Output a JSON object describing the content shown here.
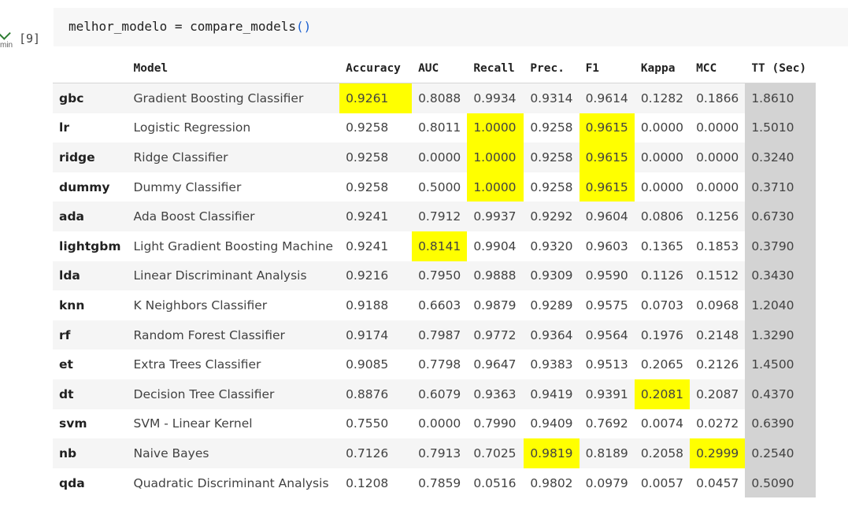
{
  "cell": {
    "run_time": "min",
    "exec_count": "[9]",
    "code_prefix": "melhor_modelo = compare_models",
    "code_paren": "()"
  },
  "table": {
    "headers": [
      "",
      "Model",
      "Accuracy",
      "AUC",
      "Recall",
      "Prec.",
      "F1",
      "Kappa",
      "MCC",
      "TT (Sec)"
    ],
    "rows": [
      {
        "idx": "gbc",
        "model": "Gradient Boosting Classifier",
        "vals": [
          "0.9261",
          "0.8088",
          "0.9934",
          "0.9314",
          "0.9614",
          "0.1282",
          "0.1866",
          "1.8610"
        ],
        "hl": [
          0
        ]
      },
      {
        "idx": "lr",
        "model": "Logistic Regression",
        "vals": [
          "0.9258",
          "0.8011",
          "1.0000",
          "0.9258",
          "0.9615",
          "0.0000",
          "0.0000",
          "1.5010"
        ],
        "hl": [
          2,
          4
        ]
      },
      {
        "idx": "ridge",
        "model": "Ridge Classifier",
        "vals": [
          "0.9258",
          "0.0000",
          "1.0000",
          "0.9258",
          "0.9615",
          "0.0000",
          "0.0000",
          "0.3240"
        ],
        "hl": [
          2,
          4
        ]
      },
      {
        "idx": "dummy",
        "model": "Dummy Classifier",
        "vals": [
          "0.9258",
          "0.5000",
          "1.0000",
          "0.9258",
          "0.9615",
          "0.0000",
          "0.0000",
          "0.3710"
        ],
        "hl": [
          2,
          4
        ]
      },
      {
        "idx": "ada",
        "model": "Ada Boost Classifier",
        "vals": [
          "0.9241",
          "0.7912",
          "0.9937",
          "0.9292",
          "0.9604",
          "0.0806",
          "0.1256",
          "0.6730"
        ],
        "hl": []
      },
      {
        "idx": "lightgbm",
        "model": "Light Gradient Boosting Machine",
        "vals": [
          "0.9241",
          "0.8141",
          "0.9904",
          "0.9320",
          "0.9603",
          "0.1365",
          "0.1853",
          "0.3790"
        ],
        "hl": [
          1
        ]
      },
      {
        "idx": "lda",
        "model": "Linear Discriminant Analysis",
        "vals": [
          "0.9216",
          "0.7950",
          "0.9888",
          "0.9309",
          "0.9590",
          "0.1126",
          "0.1512",
          "0.3430"
        ],
        "hl": []
      },
      {
        "idx": "knn",
        "model": "K Neighbors Classifier",
        "vals": [
          "0.9188",
          "0.6603",
          "0.9879",
          "0.9289",
          "0.9575",
          "0.0703",
          "0.0968",
          "1.2040"
        ],
        "hl": []
      },
      {
        "idx": "rf",
        "model": "Random Forest Classifier",
        "vals": [
          "0.9174",
          "0.7987",
          "0.9772",
          "0.9364",
          "0.9564",
          "0.1976",
          "0.2148",
          "1.3290"
        ],
        "hl": []
      },
      {
        "idx": "et",
        "model": "Extra Trees Classifier",
        "vals": [
          "0.9085",
          "0.7798",
          "0.9647",
          "0.9383",
          "0.9513",
          "0.2065",
          "0.2126",
          "1.4500"
        ],
        "hl": []
      },
      {
        "idx": "dt",
        "model": "Decision Tree Classifier",
        "vals": [
          "0.8876",
          "0.6079",
          "0.9363",
          "0.9419",
          "0.9391",
          "0.2081",
          "0.2087",
          "0.4370"
        ],
        "hl": [
          5
        ]
      },
      {
        "idx": "svm",
        "model": "SVM - Linear Kernel",
        "vals": [
          "0.7550",
          "0.0000",
          "0.7990",
          "0.9409",
          "0.7692",
          "0.0074",
          "0.0272",
          "0.6390"
        ],
        "hl": []
      },
      {
        "idx": "nb",
        "model": "Naive Bayes",
        "vals": [
          "0.7126",
          "0.7913",
          "0.7025",
          "0.9819",
          "0.8189",
          "0.2058",
          "0.2999",
          "0.2540"
        ],
        "hl": [
          3,
          6
        ]
      },
      {
        "idx": "qda",
        "model": "Quadratic Discriminant Analysis",
        "vals": [
          "0.1208",
          "0.7859",
          "0.0516",
          "0.9802",
          "0.0979",
          "0.0057",
          "0.0457",
          "0.5090"
        ],
        "hl": []
      }
    ]
  },
  "colors": {
    "highlight": "#ffff00",
    "tt_column": "#d3d3d3",
    "stripe": "#f5f5f5"
  }
}
